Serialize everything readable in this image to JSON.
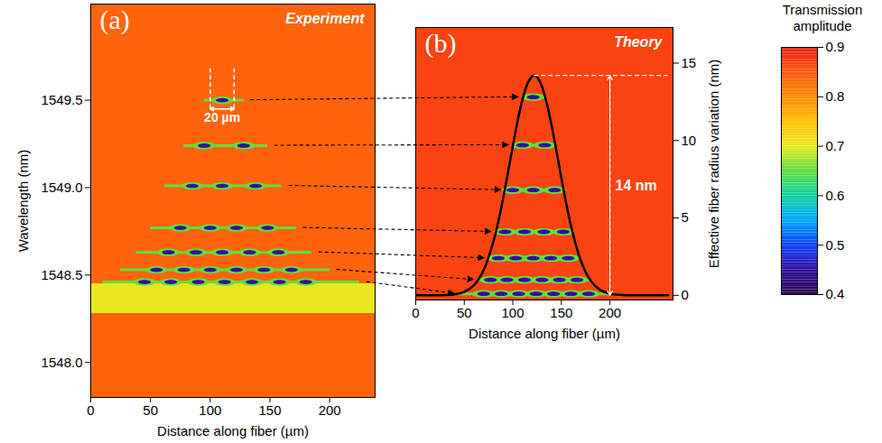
{
  "chart_data": [
    {
      "type": "heatmap",
      "panel": "(a)",
      "title": "Experiment",
      "xlabel": "Distance along fiber (µm)",
      "ylabel": "Wavelength (nm)",
      "xlim": [
        0,
        238
      ],
      "xticks": [
        0,
        50,
        100,
        150,
        200
      ],
      "ylim": [
        1547.8,
        1550.05
      ],
      "yticks": [
        {
          "value": 1548.0,
          "label": "1548.0"
        },
        {
          "value": 1548.5,
          "label": "1548.5"
        },
        {
          "value": 1549.0,
          "label": "1549.0"
        },
        {
          "value": 1549.5,
          "label": "1549.5"
        }
      ],
      "background_transmission": 0.84,
      "dip_transmission": 0.45,
      "tail_transmission": 0.65,
      "noise_band": {
        "y1": 1548.28,
        "y2": 1548.45,
        "transmission": 0.7
      },
      "resonances": [
        {
          "y": 1549.5,
          "lobes": [
            110
          ],
          "extent": [
            95,
            128
          ]
        },
        {
          "y": 1549.24,
          "lobes": [
            95,
            128
          ],
          "extent": [
            78,
            148
          ]
        },
        {
          "y": 1549.01,
          "lobes": [
            85,
            110,
            138
          ],
          "extent": [
            62,
            160
          ]
        },
        {
          "y": 1548.77,
          "lobes": [
            75,
            100,
            122,
            148
          ],
          "extent": [
            50,
            172
          ]
        },
        {
          "y": 1548.63,
          "lobes": [
            65,
            88,
            110,
            133,
            157
          ],
          "extent": [
            38,
            185
          ]
        },
        {
          "y": 1548.53,
          "lobes": [
            55,
            78,
            100,
            122,
            145,
            168
          ],
          "extent": [
            25,
            200
          ]
        },
        {
          "y": 1548.46,
          "lobes": [
            45,
            67,
            90,
            112,
            135,
            158,
            180
          ],
          "extent": [
            10,
            225
          ]
        }
      ],
      "annotation": {
        "text": "20 µm",
        "x1": 100,
        "x2": 120,
        "y1": 1549.45,
        "y2": 1549.68
      }
    },
    {
      "type": "heatmap",
      "panel": "(b)",
      "title": "Theory",
      "xlabel": "Distance along fiber (µm)",
      "ylabel": "Effective fiber radius variation (nm)",
      "xlim": [
        0,
        265
      ],
      "xticks": [
        0,
        50,
        100,
        150,
        200
      ],
      "ylim": [
        -0.3,
        17.3
      ],
      "yticks": [
        0,
        5,
        10,
        15
      ],
      "background_transmission": 0.87,
      "dip_transmission": 0.45,
      "tail_transmission": 0.65,
      "resonances": [
        {
          "y": 12.8,
          "lobes": [
            121
          ],
          "extent": [
            110,
            133
          ]
        },
        {
          "y": 9.7,
          "lobes": [
            110,
            133
          ],
          "extent": [
            100,
            144
          ]
        },
        {
          "y": 6.8,
          "lobes": [
            100,
            121,
            143
          ],
          "extent": [
            92,
            152
          ]
        },
        {
          "y": 4.1,
          "lobes": [
            92,
            112,
            132,
            152
          ],
          "extent": [
            82,
            162
          ]
        },
        {
          "y": 2.4,
          "lobes": [
            85,
            103,
            121,
            139,
            157
          ],
          "extent": [
            75,
            169
          ]
        },
        {
          "y": 1.0,
          "lobes": [
            77,
            94,
            112,
            130,
            148,
            166
          ],
          "extent": [
            64,
            180
          ]
        },
        {
          "y": 0.1,
          "lobes": [
            70,
            88,
            106,
            124,
            142,
            160,
            178
          ],
          "extent": [
            44,
            200
          ]
        }
      ],
      "curve": {
        "color": "#000000",
        "x": [
          0,
          10,
          20,
          30,
          40,
          50,
          60,
          70,
          80,
          85,
          90,
          95,
          100,
          105,
          110,
          115,
          120,
          122,
          125,
          130,
          135,
          140,
          145,
          150,
          155,
          160,
          170,
          180,
          190,
          200,
          210,
          220,
          230,
          240,
          250,
          260
        ],
        "values": [
          0,
          0,
          0,
          0.02,
          0.07,
          0.22,
          0.65,
          1.63,
          3.47,
          4.75,
          6.26,
          7.93,
          9.64,
          11.27,
          12.66,
          13.65,
          14.15,
          14.2,
          14.1,
          13.49,
          12.4,
          10.96,
          9.3,
          7.58,
          5.94,
          4.47,
          2.25,
          0.96,
          0.35,
          0.11,
          0.03,
          0.01,
          0,
          0,
          0,
          0
        ]
      },
      "annotation": {
        "text": "14 nm",
        "x": 200,
        "y1": 0,
        "y2": 14.2,
        "x1": 122,
        "x2": 260
      }
    }
  ],
  "colorbar": {
    "title": "Transmission amplitude",
    "range": [
      0.4,
      0.9
    ],
    "ticks": [
      0.4,
      0.5,
      0.6,
      0.7,
      0.8,
      0.9
    ],
    "colors": [
      "#2d0a4e",
      "#3010a0",
      "#1040ff",
      "#00a8ff",
      "#10d0a0",
      "#60e040",
      "#e8e820",
      "#ffc000",
      "#ff8a00",
      "#ff5a10",
      "#f02010"
    ]
  }
}
